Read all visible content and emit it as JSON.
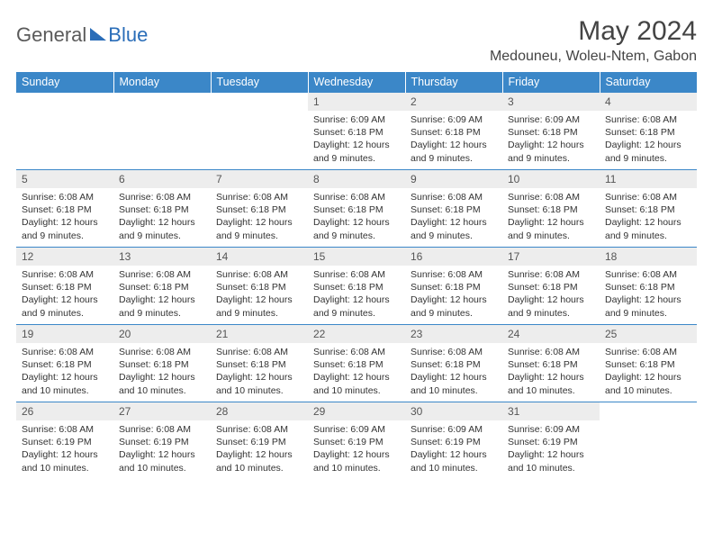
{
  "logo": {
    "general": "General",
    "blue": "Blue"
  },
  "title": {
    "month_year": "May 2024",
    "location": "Medouneu, Woleu-Ntem, Gabon"
  },
  "colors": {
    "header_bg": "#3b87c8",
    "header_text": "#ffffff",
    "daynum_bg": "#ededed",
    "daynum_text": "#555555",
    "body_text": "#333333",
    "rule": "#3b87c8",
    "logo_gray": "#5a5a5a",
    "logo_blue": "#2a6db8"
  },
  "day_headers": [
    "Sunday",
    "Monday",
    "Tuesday",
    "Wednesday",
    "Thursday",
    "Friday",
    "Saturday"
  ],
  "weeks": [
    [
      {
        "empty": true
      },
      {
        "empty": true
      },
      {
        "empty": true
      },
      {
        "n": "1",
        "sr": "6:09 AM",
        "ss": "6:18 PM",
        "dl": "12 hours and 9 minutes."
      },
      {
        "n": "2",
        "sr": "6:09 AM",
        "ss": "6:18 PM",
        "dl": "12 hours and 9 minutes."
      },
      {
        "n": "3",
        "sr": "6:09 AM",
        "ss": "6:18 PM",
        "dl": "12 hours and 9 minutes."
      },
      {
        "n": "4",
        "sr": "6:08 AM",
        "ss": "6:18 PM",
        "dl": "12 hours and 9 minutes."
      }
    ],
    [
      {
        "n": "5",
        "sr": "6:08 AM",
        "ss": "6:18 PM",
        "dl": "12 hours and 9 minutes."
      },
      {
        "n": "6",
        "sr": "6:08 AM",
        "ss": "6:18 PM",
        "dl": "12 hours and 9 minutes."
      },
      {
        "n": "7",
        "sr": "6:08 AM",
        "ss": "6:18 PM",
        "dl": "12 hours and 9 minutes."
      },
      {
        "n": "8",
        "sr": "6:08 AM",
        "ss": "6:18 PM",
        "dl": "12 hours and 9 minutes."
      },
      {
        "n": "9",
        "sr": "6:08 AM",
        "ss": "6:18 PM",
        "dl": "12 hours and 9 minutes."
      },
      {
        "n": "10",
        "sr": "6:08 AM",
        "ss": "6:18 PM",
        "dl": "12 hours and 9 minutes."
      },
      {
        "n": "11",
        "sr": "6:08 AM",
        "ss": "6:18 PM",
        "dl": "12 hours and 9 minutes."
      }
    ],
    [
      {
        "n": "12",
        "sr": "6:08 AM",
        "ss": "6:18 PM",
        "dl": "12 hours and 9 minutes."
      },
      {
        "n": "13",
        "sr": "6:08 AM",
        "ss": "6:18 PM",
        "dl": "12 hours and 9 minutes."
      },
      {
        "n": "14",
        "sr": "6:08 AM",
        "ss": "6:18 PM",
        "dl": "12 hours and 9 minutes."
      },
      {
        "n": "15",
        "sr": "6:08 AM",
        "ss": "6:18 PM",
        "dl": "12 hours and 9 minutes."
      },
      {
        "n": "16",
        "sr": "6:08 AM",
        "ss": "6:18 PM",
        "dl": "12 hours and 9 minutes."
      },
      {
        "n": "17",
        "sr": "6:08 AM",
        "ss": "6:18 PM",
        "dl": "12 hours and 9 minutes."
      },
      {
        "n": "18",
        "sr": "6:08 AM",
        "ss": "6:18 PM",
        "dl": "12 hours and 9 minutes."
      }
    ],
    [
      {
        "n": "19",
        "sr": "6:08 AM",
        "ss": "6:18 PM",
        "dl": "12 hours and 10 minutes."
      },
      {
        "n": "20",
        "sr": "6:08 AM",
        "ss": "6:18 PM",
        "dl": "12 hours and 10 minutes."
      },
      {
        "n": "21",
        "sr": "6:08 AM",
        "ss": "6:18 PM",
        "dl": "12 hours and 10 minutes."
      },
      {
        "n": "22",
        "sr": "6:08 AM",
        "ss": "6:18 PM",
        "dl": "12 hours and 10 minutes."
      },
      {
        "n": "23",
        "sr": "6:08 AM",
        "ss": "6:18 PM",
        "dl": "12 hours and 10 minutes."
      },
      {
        "n": "24",
        "sr": "6:08 AM",
        "ss": "6:18 PM",
        "dl": "12 hours and 10 minutes."
      },
      {
        "n": "25",
        "sr": "6:08 AM",
        "ss": "6:18 PM",
        "dl": "12 hours and 10 minutes."
      }
    ],
    [
      {
        "n": "26",
        "sr": "6:08 AM",
        "ss": "6:19 PM",
        "dl": "12 hours and 10 minutes."
      },
      {
        "n": "27",
        "sr": "6:08 AM",
        "ss": "6:19 PM",
        "dl": "12 hours and 10 minutes."
      },
      {
        "n": "28",
        "sr": "6:08 AM",
        "ss": "6:19 PM",
        "dl": "12 hours and 10 minutes."
      },
      {
        "n": "29",
        "sr": "6:09 AM",
        "ss": "6:19 PM",
        "dl": "12 hours and 10 minutes."
      },
      {
        "n": "30",
        "sr": "6:09 AM",
        "ss": "6:19 PM",
        "dl": "12 hours and 10 minutes."
      },
      {
        "n": "31",
        "sr": "6:09 AM",
        "ss": "6:19 PM",
        "dl": "12 hours and 10 minutes."
      },
      {
        "empty": true
      }
    ]
  ],
  "labels": {
    "sunrise": "Sunrise:",
    "sunset": "Sunset:",
    "daylight": "Daylight:"
  }
}
